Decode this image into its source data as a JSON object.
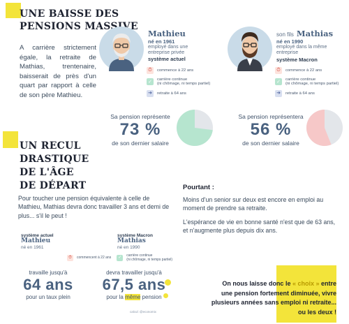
{
  "section1": {
    "title": "UNE BAISSE DES PENSIONS MASSIVE",
    "intro": "A carrière strictement égale, la retraite de Mathias, trentenaire, baisserait de près d'un quart par rapport à celle de son père Mathieu."
  },
  "father": {
    "name": "Mathieu",
    "born": "né en 1961",
    "job": "employé dans une entreprise privée",
    "system": "système actuel",
    "rows": [
      "commence à 22 ans",
      "carrière continue",
      "(ni chômage, ni temps partiel)",
      "retraite à 64 ans"
    ],
    "pension_caption_top": "Sa pension représente",
    "pension_value": "73 %",
    "pension_caption_bottom": "de son dernier salaire",
    "pension_percent": 73
  },
  "son": {
    "prefix": "son fils",
    "name": "Mathias",
    "born": "né en 1990",
    "job": "employé dans la même entreprise",
    "system": "système Macron",
    "rows": [
      "commence à 22 ans",
      "carrière continue",
      "(ni chômage, ni temps partiel)",
      "retraite à 64 ans"
    ],
    "pension_caption_top": "Sa pension représentera",
    "pension_value": "56 %",
    "pension_caption_bottom": "de son dernier salaire",
    "pension_percent": 56
  },
  "section2": {
    "title_lines": [
      "UN RECUL",
      "DRASTIQUE",
      "DE L'ÂGE",
      "DE DÉPART"
    ],
    "text": "Pour toucher une pension équivalente à celle de Mathieu, Mathias devra donc travailler 3 ans et demi de plus... s'il le peut !",
    "mini_left_system": "système actuel",
    "mini_left_name": "Mathieu",
    "mini_left_born": "né en 1961",
    "mini_right_system": "système Macron",
    "mini_right_name": "Mathias",
    "mini_right_born": "né en 1990",
    "mini_row1": "commencent à 22 ans",
    "mini_row2": "carrière continue",
    "mini_row2b": "(ni chômage, ni temps partiel)",
    "left_top": "travaille jusqu'à",
    "left_big": "64 ans",
    "left_bottom": "pour un taux plein",
    "right_top": "devra travailler jusqu'à",
    "right_big": "67,5 ans",
    "right_bottom_a": "pour la ",
    "right_bottom_hl": "même",
    "right_bottom_b": " pension",
    "credit": "calcul: @economix"
  },
  "pourtant": {
    "title": "Pourtant :",
    "p1": "Moins d'un senior sur deux est encore en emploi au moment de prendre sa retraite.",
    "p2": "L'espérance de vie en bonne santé n'est que de 63 ans, et n'augmente plus depuis dix ans."
  },
  "conclusion": {
    "line1a": "On nous laisse donc le ",
    "line1hl": "« choix »",
    "line1b": " entre",
    "line2a": "une pension fortement ",
    "line2hl": "diminuée, vivre",
    "line3": "plusieurs années sans emploi ni retraite...",
    "line4": "ou les deux !"
  },
  "colors": {
    "accent": "#f3e43a",
    "pie_green": "#b6e5cf",
    "pie_red": "#f6c8c8",
    "pie_grey": "#e3e6ea",
    "blue_text": "#4a6280"
  }
}
